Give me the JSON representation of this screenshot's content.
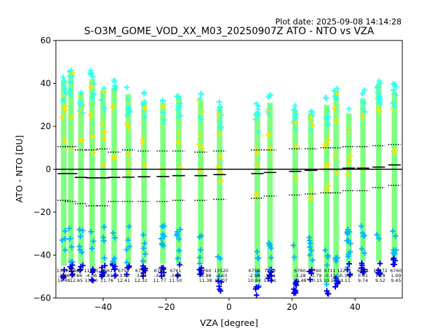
{
  "plot_date": "Plot date: 2025-09-08 14:14:28",
  "chart_data": {
    "type": "scatter",
    "title": "S-O3M_GOME_VOD_XX_M03_20250907Z ATO - NTO vs VZA",
    "xlabel": "VZA [degree]",
    "ylabel": "ATO - NTO [DU]",
    "xlim": [
      -55,
      55
    ],
    "ylim": [
      -60,
      60
    ],
    "xticks": [
      -40,
      -20,
      0,
      20,
      40
    ],
    "xtick_labels": [
      "−40",
      "−20",
      "0",
      "20",
      "40"
    ],
    "yticks": [
      -60,
      -40,
      -20,
      0,
      20,
      40,
      60
    ],
    "ytick_labels": [
      "−60",
      "−40",
      "−20",
      "0",
      "20",
      "40",
      "60"
    ],
    "grid": false,
    "reference_line_y": 0,
    "colors": {
      "core": "#80ff80",
      "mid": "#33ffee",
      "high": "#ffe000",
      "edge": "#00b8ff",
      "outlier": "#0000ee",
      "stats": "#000000"
    },
    "bins": [
      {
        "x": -52.5,
        "median": -2.0,
        "upper": 10.5,
        "lower": -14.5,
        "top": 45,
        "bottom": -51
      },
      {
        "x": -50.2,
        "median": -2.0,
        "upper": 10.5,
        "lower": -15.0,
        "top": 49,
        "bottom": -50
      },
      {
        "x": -47.0,
        "median": -3.8,
        "upper": 9.0,
        "lower": -16.0,
        "top": 40,
        "bottom": -50
      },
      {
        "x": -43.5,
        "median": -4.0,
        "upper": 9.0,
        "lower": -17.0,
        "top": 46,
        "bottom": -52
      },
      {
        "x": -40.0,
        "median": -4.0,
        "upper": 9.5,
        "lower": -17.0,
        "top": 41,
        "bottom": -50
      },
      {
        "x": -36.5,
        "median": -3.8,
        "upper": 8.0,
        "lower": -15.0,
        "top": 42,
        "bottom": -50
      },
      {
        "x": -32.0,
        "median": -3.7,
        "upper": 9.0,
        "lower": -15.0,
        "top": 39,
        "bottom": -50
      },
      {
        "x": -27.0,
        "median": -3.5,
        "upper": 8.5,
        "lower": -15.0,
        "top": 36,
        "bottom": -50
      },
      {
        "x": -21.0,
        "median": -3.4,
        "upper": 8.5,
        "lower": -15.0,
        "top": 35,
        "bottom": -50
      },
      {
        "x": -16.0,
        "median": -3.0,
        "upper": 8.5,
        "lower": -14.5,
        "top": 38,
        "bottom": -50
      },
      {
        "x": -9.0,
        "median": -3.0,
        "upper": 8.0,
        "lower": -14.5,
        "top": 36,
        "bottom": -50
      },
      {
        "x": -3.0,
        "median": -2.5,
        "upper": 8.5,
        "lower": -14.0,
        "top": 33,
        "bottom": -57
      },
      {
        "x": 9.0,
        "median": -2.0,
        "upper": 9.0,
        "lower": -13.5,
        "top": 31,
        "bottom": -59
      },
      {
        "x": 13.0,
        "median": -1.5,
        "upper": 9.0,
        "lower": -12.5,
        "top": 35,
        "bottom": -52
      },
      {
        "x": 21.0,
        "median": -1.0,
        "upper": 9.5,
        "lower": -12.0,
        "top": 31,
        "bottom": -58
      },
      {
        "x": 26.0,
        "median": -0.5,
        "upper": 9.5,
        "lower": -11.5,
        "top": 30,
        "bottom": -52
      },
      {
        "x": 31.0,
        "median": 0.0,
        "upper": 10.0,
        "lower": -11.0,
        "top": 34,
        "bottom": -59
      },
      {
        "x": 34.0,
        "median": 0.0,
        "upper": 10.0,
        "lower": -11.0,
        "top": 41,
        "bottom": -56
      },
      {
        "x": 38.0,
        "median": 0.5,
        "upper": 10.5,
        "lower": -10.0,
        "top": 30,
        "bottom": -50
      },
      {
        "x": 42.5,
        "median": 0.5,
        "upper": 10.5,
        "lower": -10.0,
        "top": 37,
        "bottom": -49
      },
      {
        "x": 47.5,
        "median": 1.0,
        "upper": 11.0,
        "lower": -8.5,
        "top": 44,
        "bottom": -49
      },
      {
        "x": 52.5,
        "median": 2.0,
        "upper": 11.5,
        "lower": -7.5,
        "top": 40,
        "bottom": -47
      }
    ],
    "annotations": [
      {
        "x": -52.5,
        "lines": [
          "13089",
          "-2.06",
          "14.48"
        ]
      },
      {
        "x": -48.5,
        "lines": [
          "6661",
          "-3.66",
          "12.65"
        ]
      },
      {
        "x": -43.8,
        "lines": [
          "11175",
          "-4.06",
          "13.20"
        ]
      },
      {
        "x": -38.8,
        "lines": [
          "8961",
          "-3.81",
          "11.76"
        ]
      },
      {
        "x": -33.5,
        "lines": [
          "6751",
          "-3.65",
          "12.41"
        ]
      },
      {
        "x": -28.0,
        "lines": [
          "6758",
          "-3.54",
          "12.32"
        ]
      },
      {
        "x": -22.0,
        "lines": [
          "6781",
          "-3.49",
          "11.77"
        ]
      },
      {
        "x": -17.0,
        "lines": [
          "6761",
          "-3.25",
          "11.50"
        ]
      },
      {
        "x": -7.5,
        "lines": [
          "6760",
          "-2.98",
          "11.38"
        ]
      },
      {
        "x": -2.5,
        "lines": [
          "13520",
          "-2.63",
          "11.07"
        ]
      },
      {
        "x": 8.0,
        "lines": [
          "6758",
          "-2.18",
          "10.84"
        ]
      },
      {
        "x": 13.0,
        "lines": [
          "7318",
          "-1.51",
          "11.11"
        ]
      },
      {
        "x": 22.5,
        "lines": [
          "6760",
          "-1.28",
          "10.48"
        ]
      },
      {
        "x": 27.5,
        "lines": [
          "6760",
          "-0.79",
          "10.15"
        ]
      },
      {
        "x": 32.0,
        "lines": [
          "6711",
          "-0.11",
          "10.10"
        ]
      },
      {
        "x": 36.5,
        "lines": [
          "12231",
          "-0.39",
          "10.11"
        ]
      },
      {
        "x": 42.5,
        "lines": [
          "6634",
          "0.41",
          "9.74"
        ]
      },
      {
        "x": 48.0,
        "lines": [
          "13872",
          "1.28",
          "9.52"
        ]
      },
      {
        "x": 53.0,
        "lines": [
          "6760",
          "1.99",
          "9.45"
        ]
      }
    ]
  }
}
